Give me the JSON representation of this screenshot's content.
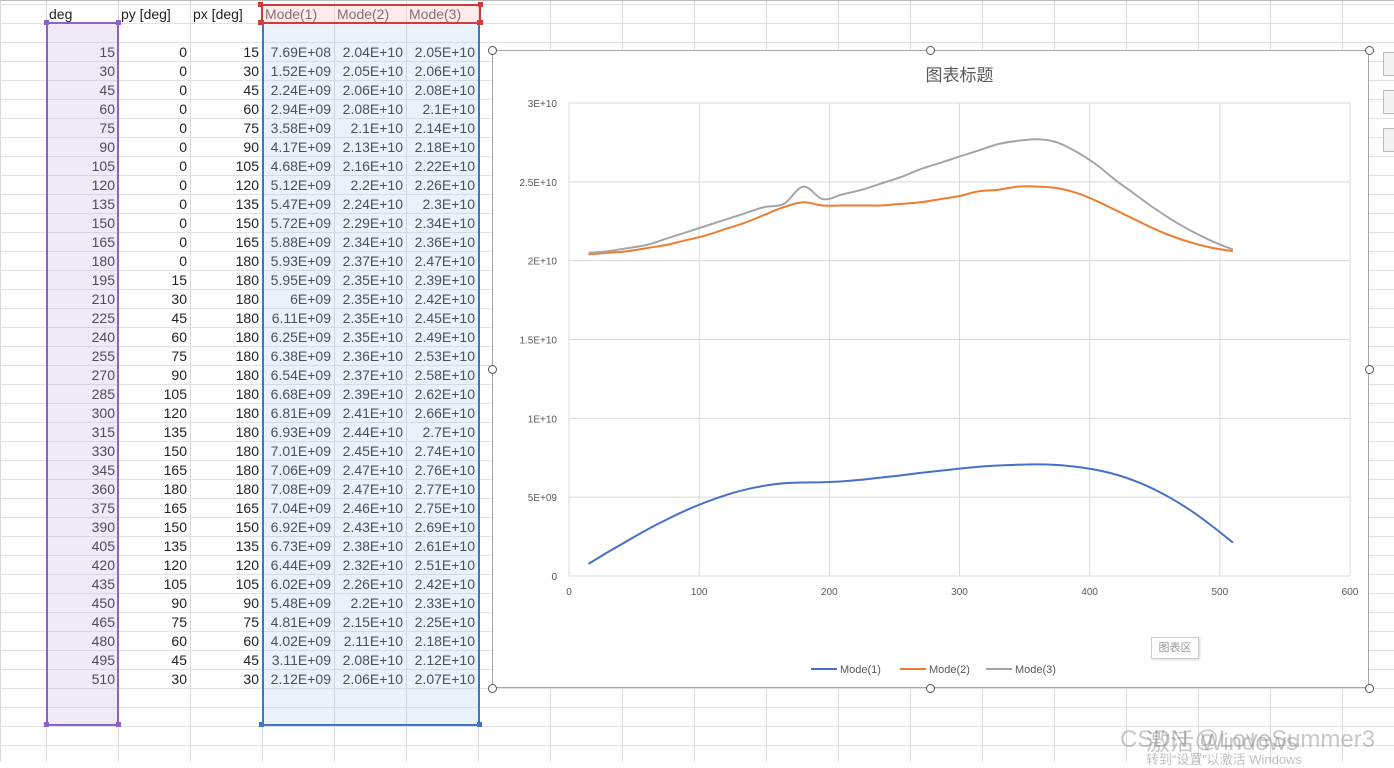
{
  "sheet": {
    "headers": {
      "deg": "deg",
      "py": "py [deg]",
      "px": "px [deg]",
      "mode1": "Mode(1)",
      "mode2": "Mode(2)",
      "mode3": "Mode(3)"
    },
    "rows": [
      {
        "deg": "15",
        "py": "0",
        "px": "15",
        "m1": "7.69E+08",
        "m2": "2.04E+10",
        "m3": "2.05E+10"
      },
      {
        "deg": "30",
        "py": "0",
        "px": "30",
        "m1": "1.52E+09",
        "m2": "2.05E+10",
        "m3": "2.06E+10"
      },
      {
        "deg": "45",
        "py": "0",
        "px": "45",
        "m1": "2.24E+09",
        "m2": "2.06E+10",
        "m3": "2.08E+10"
      },
      {
        "deg": "60",
        "py": "0",
        "px": "60",
        "m1": "2.94E+09",
        "m2": "2.08E+10",
        "m3": "2.1E+10"
      },
      {
        "deg": "75",
        "py": "0",
        "px": "75",
        "m1": "3.58E+09",
        "m2": "2.1E+10",
        "m3": "2.14E+10"
      },
      {
        "deg": "90",
        "py": "0",
        "px": "90",
        "m1": "4.17E+09",
        "m2": "2.13E+10",
        "m3": "2.18E+10"
      },
      {
        "deg": "105",
        "py": "0",
        "px": "105",
        "m1": "4.68E+09",
        "m2": "2.16E+10",
        "m3": "2.22E+10"
      },
      {
        "deg": "120",
        "py": "0",
        "px": "120",
        "m1": "5.12E+09",
        "m2": "2.2E+10",
        "m3": "2.26E+10"
      },
      {
        "deg": "135",
        "py": "0",
        "px": "135",
        "m1": "5.47E+09",
        "m2": "2.24E+10",
        "m3": "2.3E+10"
      },
      {
        "deg": "150",
        "py": "0",
        "px": "150",
        "m1": "5.72E+09",
        "m2": "2.29E+10",
        "m3": "2.34E+10"
      },
      {
        "deg": "165",
        "py": "0",
        "px": "165",
        "m1": "5.88E+09",
        "m2": "2.34E+10",
        "m3": "2.36E+10"
      },
      {
        "deg": "180",
        "py": "0",
        "px": "180",
        "m1": "5.93E+09",
        "m2": "2.37E+10",
        "m3": "2.47E+10"
      },
      {
        "deg": "195",
        "py": "15",
        "px": "180",
        "m1": "5.95E+09",
        "m2": "2.35E+10",
        "m3": "2.39E+10"
      },
      {
        "deg": "210",
        "py": "30",
        "px": "180",
        "m1": "6E+09",
        "m2": "2.35E+10",
        "m3": "2.42E+10"
      },
      {
        "deg": "225",
        "py": "45",
        "px": "180",
        "m1": "6.11E+09",
        "m2": "2.35E+10",
        "m3": "2.45E+10"
      },
      {
        "deg": "240",
        "py": "60",
        "px": "180",
        "m1": "6.25E+09",
        "m2": "2.35E+10",
        "m3": "2.49E+10"
      },
      {
        "deg": "255",
        "py": "75",
        "px": "180",
        "m1": "6.38E+09",
        "m2": "2.36E+10",
        "m3": "2.53E+10"
      },
      {
        "deg": "270",
        "py": "90",
        "px": "180",
        "m1": "6.54E+09",
        "m2": "2.37E+10",
        "m3": "2.58E+10"
      },
      {
        "deg": "285",
        "py": "105",
        "px": "180",
        "m1": "6.68E+09",
        "m2": "2.39E+10",
        "m3": "2.62E+10"
      },
      {
        "deg": "300",
        "py": "120",
        "px": "180",
        "m1": "6.81E+09",
        "m2": "2.41E+10",
        "m3": "2.66E+10"
      },
      {
        "deg": "315",
        "py": "135",
        "px": "180",
        "m1": "6.93E+09",
        "m2": "2.44E+10",
        "m3": "2.7E+10"
      },
      {
        "deg": "330",
        "py": "150",
        "px": "180",
        "m1": "7.01E+09",
        "m2": "2.45E+10",
        "m3": "2.74E+10"
      },
      {
        "deg": "345",
        "py": "165",
        "px": "180",
        "m1": "7.06E+09",
        "m2": "2.47E+10",
        "m3": "2.76E+10"
      },
      {
        "deg": "360",
        "py": "180",
        "px": "180",
        "m1": "7.08E+09",
        "m2": "2.47E+10",
        "m3": "2.77E+10"
      },
      {
        "deg": "375",
        "py": "165",
        "px": "165",
        "m1": "7.04E+09",
        "m2": "2.46E+10",
        "m3": "2.75E+10"
      },
      {
        "deg": "390",
        "py": "150",
        "px": "150",
        "m1": "6.92E+09",
        "m2": "2.43E+10",
        "m3": "2.69E+10"
      },
      {
        "deg": "405",
        "py": "135",
        "px": "135",
        "m1": "6.73E+09",
        "m2": "2.38E+10",
        "m3": "2.61E+10"
      },
      {
        "deg": "420",
        "py": "120",
        "px": "120",
        "m1": "6.44E+09",
        "m2": "2.32E+10",
        "m3": "2.51E+10"
      },
      {
        "deg": "435",
        "py": "105",
        "px": "105",
        "m1": "6.02E+09",
        "m2": "2.26E+10",
        "m3": "2.42E+10"
      },
      {
        "deg": "450",
        "py": "90",
        "px": "90",
        "m1": "5.48E+09",
        "m2": "2.2E+10",
        "m3": "2.33E+10"
      },
      {
        "deg": "465",
        "py": "75",
        "px": "75",
        "m1": "4.81E+09",
        "m2": "2.15E+10",
        "m3": "2.25E+10"
      },
      {
        "deg": "480",
        "py": "60",
        "px": "60",
        "m1": "4.02E+09",
        "m2": "2.11E+10",
        "m3": "2.18E+10"
      },
      {
        "deg": "495",
        "py": "45",
        "px": "45",
        "m1": "3.11E+09",
        "m2": "2.08E+10",
        "m3": "2.12E+10"
      },
      {
        "deg": "510",
        "py": "30",
        "px": "30",
        "m1": "2.12E+09",
        "m2": "2.06E+10",
        "m3": "2.07E+10"
      }
    ]
  },
  "chart_data": {
    "type": "line",
    "title": "图表标题",
    "xlabel": "",
    "ylabel": "",
    "xlim": [
      0,
      600
    ],
    "ylim": [
      0,
      30000000000
    ],
    "x_ticks": [
      "0",
      "100",
      "200",
      "300",
      "400",
      "500",
      "600"
    ],
    "y_ticks": [
      "0",
      "5E+09",
      "1E+10",
      "1.5E+10",
      "2E+10",
      "2.5E+10",
      "3E+10"
    ],
    "x": [
      15,
      30,
      45,
      60,
      75,
      90,
      105,
      120,
      135,
      150,
      165,
      180,
      195,
      210,
      225,
      240,
      255,
      270,
      285,
      300,
      315,
      330,
      345,
      360,
      375,
      390,
      405,
      420,
      435,
      450,
      465,
      480,
      495,
      510
    ],
    "series": [
      {
        "name": "Mode(1)",
        "color": "#4472c4",
        "values": [
          769000000,
          1520000000,
          2240000000,
          2940000000,
          3580000000,
          4170000000,
          4680000000,
          5120000000,
          5470000000,
          5720000000,
          5880000000,
          5930000000,
          5950000000,
          6000000000,
          6110000000,
          6250000000,
          6380000000,
          6540000000,
          6680000000,
          6810000000,
          6930000000,
          7010000000,
          7060000000,
          7080000000,
          7040000000,
          6920000000,
          6730000000,
          6440000000,
          6020000000,
          5480000000,
          4810000000,
          4020000000,
          3110000000,
          2120000000
        ]
      },
      {
        "name": "Mode(2)",
        "color": "#ed7d31",
        "values": [
          20400000000,
          20500000000,
          20600000000,
          20800000000,
          21000000000,
          21300000000,
          21600000000,
          22000000000,
          22400000000,
          22900000000,
          23400000000,
          23700000000,
          23500000000,
          23500000000,
          23500000000,
          23500000000,
          23600000000,
          23700000000,
          23900000000,
          24100000000,
          24400000000,
          24500000000,
          24700000000,
          24700000000,
          24600000000,
          24300000000,
          23800000000,
          23200000000,
          22600000000,
          22000000000,
          21500000000,
          21100000000,
          20800000000,
          20600000000
        ]
      },
      {
        "name": "Mode(3)",
        "color": "#a5a5a5",
        "values": [
          20500000000,
          20600000000,
          20800000000,
          21000000000,
          21400000000,
          21800000000,
          22200000000,
          22600000000,
          23000000000,
          23400000000,
          23600000000,
          24700000000,
          23900000000,
          24200000000,
          24500000000,
          24900000000,
          25300000000,
          25800000000,
          26200000000,
          26600000000,
          27000000000,
          27400000000,
          27600000000,
          27700000000,
          27500000000,
          26900000000,
          26100000000,
          25100000000,
          24200000000,
          23300000000,
          22500000000,
          21800000000,
          21200000000,
          20700000000
        ]
      }
    ],
    "legend": "bottom",
    "grid": true
  },
  "ui": {
    "chart_area_tooltip": "图表区",
    "watermark_activate": "激活 Windows",
    "watermark_csdn": "CSDN @LoveSummer3",
    "watermark_sub": "转到“设置”以激活 Windows"
  }
}
